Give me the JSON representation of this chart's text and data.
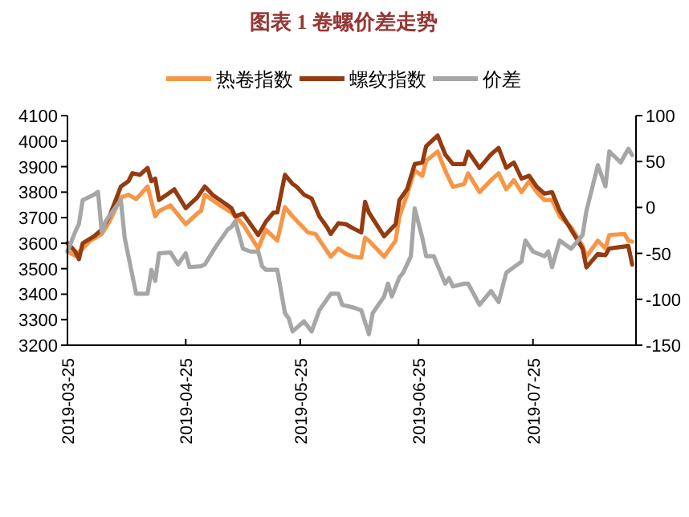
{
  "chart_data": {
    "type": "line",
    "title": "图表 1 卷螺价差走势",
    "legend": "top",
    "grid": false,
    "xlim": [
      "2019-03-25",
      "2019-08-21"
    ],
    "xticks": [
      "2019-03-25",
      "2019-04-25",
      "2019-05-25",
      "2019-06-25",
      "2019-07-25"
    ],
    "ylim": [
      3200,
      4100
    ],
    "yticks": [
      3200,
      3300,
      3400,
      3500,
      3600,
      3700,
      3800,
      3900,
      4000,
      4100
    ],
    "y2lim": [
      -150,
      100
    ],
    "y2ticks": [
      -150,
      -100,
      -50,
      0,
      50,
      100
    ],
    "series": [
      {
        "name": "热卷指数",
        "color": "#f79646",
        "x": [
          "2019-03-25",
          "2019-03-27",
          "2019-03-29",
          "2019-03-31",
          "2019-04-03",
          "2019-04-05",
          "2019-04-08",
          "2019-04-10",
          "2019-04-12",
          "2019-04-15",
          "2019-04-17",
          "2019-04-18",
          "2019-04-21",
          "2019-04-25",
          "2019-04-28",
          "2019-04-29",
          "2019-04-30",
          "2019-05-04",
          "2019-05-07",
          "2019-05-10",
          "2019-05-14",
          "2019-05-16",
          "2019-05-19",
          "2019-05-21",
          "2019-05-23",
          "2019-05-27",
          "2019-05-29",
          "2019-06-02",
          "2019-06-04",
          "2019-06-06",
          "2019-06-08",
          "2019-06-10",
          "2019-06-11",
          "2019-06-12",
          "2019-06-16",
          "2019-06-19",
          "2019-06-20",
          "2019-06-22",
          "2019-06-24",
          "2019-06-26",
          "2019-06-27",
          "2019-06-30",
          "2019-07-02",
          "2019-07-04",
          "2019-07-07",
          "2019-07-08",
          "2019-07-11",
          "2019-07-14",
          "2019-07-16",
          "2019-07-18",
          "2019-07-20",
          "2019-07-22",
          "2019-07-24",
          "2019-07-26",
          "2019-07-28",
          "2019-07-30",
          "2019-08-01",
          "2019-08-04",
          "2019-08-07",
          "2019-08-08",
          "2019-08-11",
          "2019-08-13",
          "2019-08-14",
          "2019-08-18",
          "2019-08-19",
          "2019-08-20"
        ],
        "values": [
          3568,
          3551,
          3579,
          3610,
          3636,
          3684,
          3779,
          3790,
          3773,
          3822,
          3705,
          3726,
          3748,
          3674,
          3716,
          3726,
          3790,
          3748,
          3720,
          3674,
          3579,
          3653,
          3610,
          3741,
          3705,
          3642,
          3636,
          3547,
          3579,
          3558,
          3547,
          3543,
          3621,
          3610,
          3547,
          3610,
          3705,
          3790,
          3885,
          3864,
          3923,
          3959,
          3885,
          3821,
          3832,
          3874,
          3800,
          3847,
          3874,
          3811,
          3847,
          3800,
          3843,
          3800,
          3769,
          3769,
          3705,
          3663,
          3589,
          3547,
          3610,
          3579,
          3632,
          3636,
          3610,
          3606
        ]
      },
      {
        "name": "螺纹指数",
        "color": "#943b10",
        "x": [
          "2019-03-25",
          "2019-03-27",
          "2019-03-28",
          "2019-03-29",
          "2019-04-01",
          "2019-04-03",
          "2019-04-05",
          "2019-04-08",
          "2019-04-10",
          "2019-04-11",
          "2019-04-13",
          "2019-04-15",
          "2019-04-16",
          "2019-04-17",
          "2019-04-18",
          "2019-04-20",
          "2019-04-22",
          "2019-04-25",
          "2019-04-28",
          "2019-04-30",
          "2019-05-02",
          "2019-05-06",
          "2019-05-07",
          "2019-05-08",
          "2019-05-10",
          "2019-05-14",
          "2019-05-16",
          "2019-05-18",
          "2019-05-19",
          "2019-05-21",
          "2019-05-23",
          "2019-05-24",
          "2019-05-26",
          "2019-05-28",
          "2019-05-30",
          "2019-06-01",
          "2019-06-02",
          "2019-06-04",
          "2019-06-06",
          "2019-06-08",
          "2019-06-10",
          "2019-06-11",
          "2019-06-12",
          "2019-06-16",
          "2019-06-19",
          "2019-06-20",
          "2019-06-22",
          "2019-06-24",
          "2019-06-26",
          "2019-06-27",
          "2019-06-30",
          "2019-07-02",
          "2019-07-04",
          "2019-07-07",
          "2019-07-08",
          "2019-07-11",
          "2019-07-14",
          "2019-07-16",
          "2019-07-18",
          "2019-07-20",
          "2019-07-22",
          "2019-07-24",
          "2019-07-26",
          "2019-07-28",
          "2019-07-30",
          "2019-08-01",
          "2019-08-04",
          "2019-08-07",
          "2019-08-08",
          "2019-08-11",
          "2019-08-13",
          "2019-08-14",
          "2019-08-17",
          "2019-08-19",
          "2019-08-20"
        ],
        "values": [
          3600,
          3568,
          3537,
          3600,
          3627,
          3653,
          3705,
          3822,
          3843,
          3874,
          3868,
          3895,
          3843,
          3853,
          3769,
          3790,
          3811,
          3737,
          3779,
          3822,
          3790,
          3748,
          3737,
          3705,
          3716,
          3632,
          3684,
          3720,
          3720,
          3868,
          3832,
          3822,
          3790,
          3775,
          3705,
          3663,
          3636,
          3678,
          3674,
          3657,
          3642,
          3762,
          3720,
          3627,
          3674,
          3769,
          3811,
          3910,
          3916,
          3980,
          4022,
          3948,
          3910,
          3910,
          3959,
          3895,
          3948,
          3973,
          3895,
          3916,
          3853,
          3864,
          3821,
          3794,
          3800,
          3727,
          3653,
          3579,
          3505,
          3558,
          3553,
          3579,
          3585,
          3589,
          3516
        ]
      },
      {
        "name": "价差",
        "color": "#a6a6a6",
        "axis": "y2",
        "x": [
          "2019-03-25",
          "2019-03-27",
          "2019-03-28",
          "2019-03-29",
          "2019-04-01",
          "2019-04-02",
          "2019-04-03",
          "2019-04-04",
          "2019-04-08",
          "2019-04-09",
          "2019-04-11",
          "2019-04-12",
          "2019-04-15",
          "2019-04-16",
          "2019-04-17",
          "2019-04-18",
          "2019-04-21",
          "2019-04-23",
          "2019-04-25",
          "2019-04-26",
          "2019-04-29",
          "2019-04-30",
          "2019-05-03",
          "2019-05-06",
          "2019-05-07",
          "2019-05-08",
          "2019-05-10",
          "2019-05-12",
          "2019-05-14",
          "2019-05-15",
          "2019-05-16",
          "2019-05-19",
          "2019-05-21",
          "2019-05-22",
          "2019-05-23",
          "2019-05-26",
          "2019-05-28",
          "2019-05-30",
          "2019-06-02",
          "2019-06-04",
          "2019-06-05",
          "2019-06-08",
          "2019-06-10",
          "2019-06-12",
          "2019-06-13",
          "2019-06-16",
          "2019-06-17",
          "2019-06-18",
          "2019-06-20",
          "2019-06-21",
          "2019-06-23",
          "2019-06-24",
          "2019-06-26",
          "2019-06-27",
          "2019-06-29",
          "2019-07-02",
          "2019-07-03",
          "2019-07-04",
          "2019-07-07",
          "2019-07-08",
          "2019-07-11",
          "2019-07-14",
          "2019-07-16",
          "2019-07-18",
          "2019-07-20",
          "2019-07-22",
          "2019-07-23",
          "2019-07-25",
          "2019-07-28",
          "2019-07-29",
          "2019-07-30",
          "2019-08-01",
          "2019-08-04",
          "2019-08-07",
          "2019-08-08",
          "2019-08-11",
          "2019-08-13",
          "2019-08-14",
          "2019-08-17",
          "2019-08-19",
          "2019-08-20"
        ],
        "values": [
          -48,
          -27,
          -18,
          8,
          14,
          17,
          -27,
          -15,
          8,
          -33,
          -74,
          -94,
          -94,
          -68,
          -80,
          -50,
          -49,
          -62,
          -50,
          -65,
          -64,
          -62,
          -42,
          -24,
          -21,
          -15,
          -45,
          -48,
          -48,
          -64,
          -68,
          -68,
          -115,
          -121,
          -135,
          -124,
          -135,
          -112,
          -94,
          -94,
          -106,
          -109,
          -112,
          -138,
          -115,
          -97,
          -83,
          -97,
          -76,
          -71,
          -53,
          -1,
          -33,
          -53,
          -53,
          -83,
          -77,
          -86,
          -83,
          -83,
          -106,
          -91,
          -103,
          -71,
          -65,
          -59,
          -36,
          -48,
          -53,
          -48,
          -65,
          -36,
          -45,
          -30,
          -4,
          46,
          23,
          61,
          49,
          64,
          57
        ]
      }
    ]
  }
}
